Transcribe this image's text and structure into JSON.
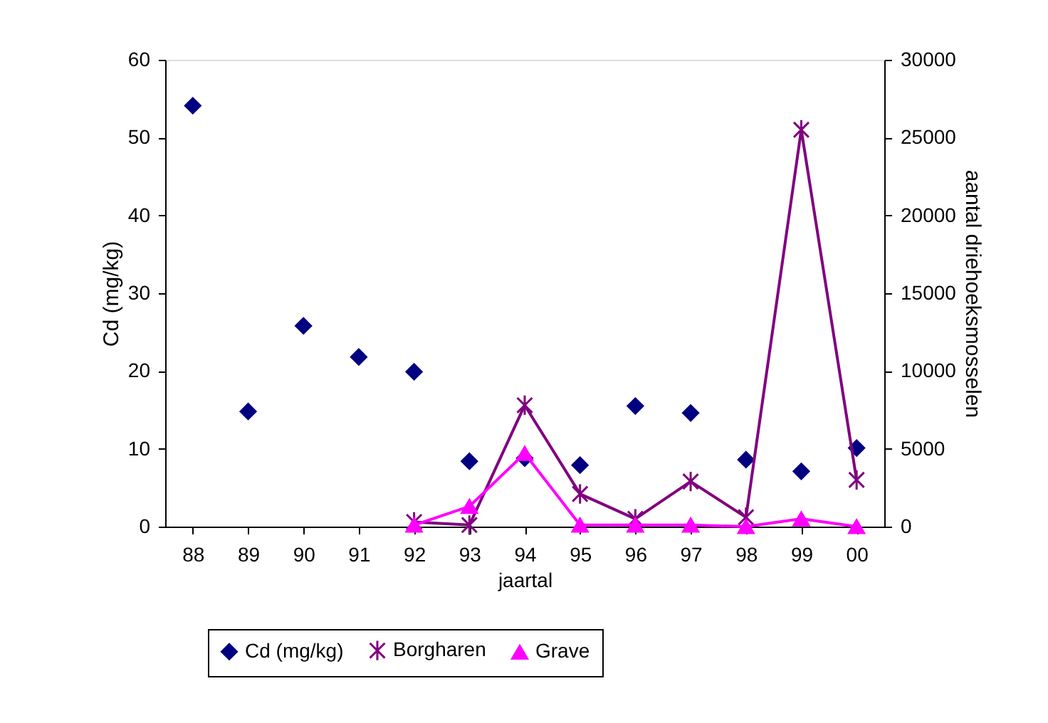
{
  "chart_data": {
    "type": "scatter",
    "xlabel": "jaartal",
    "ylabel": "Cd (mg/kg)",
    "y2label": "aantal driehoeksmosselen",
    "categories": [
      "88",
      "89",
      "90",
      "91",
      "92",
      "93",
      "94",
      "95",
      "96",
      "97",
      "98",
      "99",
      "00"
    ],
    "ylim": [
      0,
      60
    ],
    "yticks": [
      0,
      10,
      20,
      30,
      40,
      50,
      60
    ],
    "y2lim": [
      0,
      30000
    ],
    "y2ticks": [
      0,
      5000,
      10000,
      15000,
      20000,
      25000,
      30000
    ],
    "grid": false,
    "legend": "bottom",
    "series": [
      {
        "name": "Cd (mg/kg)",
        "marker": "diamond",
        "color": "#000080",
        "values": [
          54.1,
          14.8,
          25.8,
          21.8,
          19.9,
          8.4,
          8.8,
          7.9,
          15.5,
          14.6,
          8.6,
          7.1,
          10.1
        ]
      },
      {
        "name": "Borgharen",
        "type": "line",
        "axis": "y2",
        "marker": "cross",
        "color": "#800080",
        "values": [
          null,
          null,
          null,
          null,
          300,
          100,
          7800,
          2100,
          500,
          2900,
          600,
          25500,
          3000
        ]
      },
      {
        "name": "Grave",
        "type": "line",
        "axis": "y2",
        "marker": "triangle",
        "color": "#ff00ff",
        "values": [
          null,
          null,
          null,
          null,
          100,
          1300,
          4700,
          100,
          100,
          100,
          0,
          500,
          0
        ]
      }
    ]
  }
}
